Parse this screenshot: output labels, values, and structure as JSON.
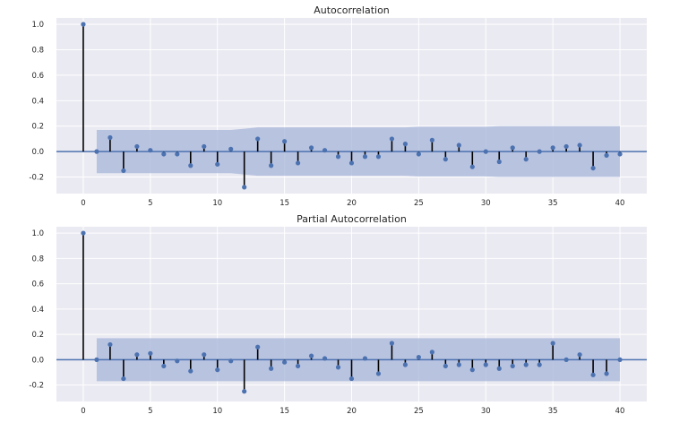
{
  "chart_data": [
    {
      "type": "stem",
      "title": "Autocorrelation",
      "xlabel": "",
      "ylabel": "",
      "xlim": [
        -2,
        42
      ],
      "ylim": [
        -0.33,
        1.05
      ],
      "xticks": [
        "0",
        "5",
        "10",
        "15",
        "20",
        "25",
        "30",
        "35",
        "40"
      ],
      "yticks": [
        "1.0",
        "0.8",
        "0.6",
        "0.4",
        "0.2",
        "0.0",
        "-0.2"
      ],
      "grid": true,
      "x": [
        0,
        1,
        2,
        3,
        4,
        5,
        6,
        7,
        8,
        9,
        10,
        11,
        12,
        13,
        14,
        15,
        16,
        17,
        18,
        19,
        20,
        21,
        22,
        23,
        24,
        25,
        26,
        27,
        28,
        29,
        30,
        31,
        32,
        33,
        34,
        35,
        36,
        37,
        38,
        39,
        40
      ],
      "values": [
        1.0,
        0.0,
        0.11,
        -0.15,
        0.04,
        0.01,
        -0.02,
        -0.02,
        -0.11,
        0.04,
        -0.1,
        0.02,
        -0.28,
        0.1,
        -0.11,
        0.08,
        -0.09,
        0.03,
        0.01,
        -0.04,
        -0.09,
        -0.04,
        -0.04,
        0.1,
        0.06,
        -0.02,
        0.09,
        -0.06,
        0.05,
        -0.12,
        0.0,
        -0.08,
        0.03,
        -0.06,
        0.0,
        0.03,
        0.04,
        0.05,
        -0.13,
        -0.03,
        -0.02
      ],
      "confidence_band": {
        "x": [
          1,
          2,
          3,
          4,
          5,
          6,
          7,
          8,
          9,
          10,
          11,
          12,
          13,
          14,
          15,
          16,
          17,
          18,
          19,
          20,
          21,
          22,
          23,
          24,
          25,
          26,
          27,
          28,
          29,
          30,
          31,
          32,
          33,
          34,
          35,
          36,
          37,
          38,
          39,
          40
        ],
        "upper": [
          0.17,
          0.17,
          0.17,
          0.17,
          0.17,
          0.17,
          0.17,
          0.17,
          0.17,
          0.17,
          0.17,
          0.18,
          0.19,
          0.19,
          0.19,
          0.19,
          0.19,
          0.19,
          0.19,
          0.19,
          0.19,
          0.19,
          0.19,
          0.19,
          0.195,
          0.195,
          0.195,
          0.195,
          0.195,
          0.195,
          0.2,
          0.2,
          0.2,
          0.2,
          0.2,
          0.2,
          0.2,
          0.2,
          0.2,
          0.2
        ]
      }
    },
    {
      "type": "stem",
      "title": "Partial Autocorrelation",
      "xlabel": "",
      "ylabel": "",
      "xlim": [
        -2,
        42
      ],
      "ylim": [
        -0.33,
        1.05
      ],
      "xticks": [
        "0",
        "5",
        "10",
        "15",
        "20",
        "25",
        "30",
        "35",
        "40"
      ],
      "yticks": [
        "1.0",
        "0.8",
        "0.6",
        "0.4",
        "0.2",
        "0.0",
        "-0.2"
      ],
      "grid": true,
      "x": [
        0,
        1,
        2,
        3,
        4,
        5,
        6,
        7,
        8,
        9,
        10,
        11,
        12,
        13,
        14,
        15,
        16,
        17,
        18,
        19,
        20,
        21,
        22,
        23,
        24,
        25,
        26,
        27,
        28,
        29,
        30,
        31,
        32,
        33,
        34,
        35,
        36,
        37,
        38,
        39,
        40
      ],
      "values": [
        1.0,
        0.0,
        0.12,
        -0.15,
        0.04,
        0.05,
        -0.05,
        -0.01,
        -0.09,
        0.04,
        -0.08,
        -0.01,
        -0.25,
        0.1,
        -0.07,
        -0.02,
        -0.05,
        0.03,
        0.01,
        -0.06,
        -0.15,
        0.01,
        -0.11,
        0.13,
        -0.04,
        0.02,
        0.06,
        -0.05,
        -0.04,
        -0.08,
        -0.04,
        -0.07,
        -0.05,
        -0.04,
        -0.04,
        0.13,
        0.0,
        0.04,
        -0.12,
        -0.11,
        0.0
      ],
      "confidence_band": {
        "x": [
          1,
          40
        ],
        "upper": [
          0.17,
          0.17
        ]
      }
    }
  ]
}
